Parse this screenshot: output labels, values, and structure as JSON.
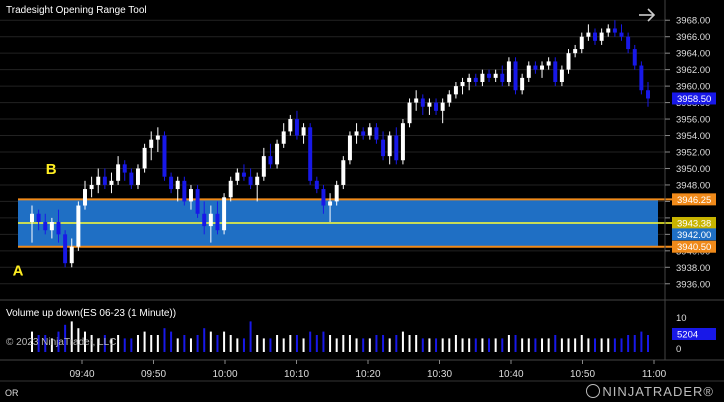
{
  "header": {
    "title": "Tradesight Opening Range Tool",
    "nav_icon": "right-arrow-icon"
  },
  "volume_panel": {
    "title": "Volume up down(ES 06-23 (1 Minute))",
    "copyright": "© 2023 NinjaTrader, LLC",
    "price_label": "5204",
    "tick_labels": [
      "10",
      "0"
    ]
  },
  "footer": {
    "corner_text": "OR",
    "brand_name": "NINJATRADER",
    "brand_trademark": "®"
  },
  "colors": {
    "up": "#ffffff",
    "down": "#1818e8",
    "range_fill": "#1f6fc4",
    "range_border": "#f08a1a",
    "range_mid": "#ffff33",
    "grid": "#222222"
  },
  "chart_data": {
    "type": "candlestick",
    "ylim": [
      3935,
      3969
    ],
    "y_ticks": [
      3936,
      3938,
      3940,
      3942,
      3944,
      3946,
      3948,
      3950,
      3952,
      3954,
      3956,
      3958,
      3960,
      3962,
      3964,
      3966,
      3968
    ],
    "y_tick_labels": [
      "3936.00",
      "3938.00",
      "3940.00",
      "3942.00",
      "",
      "",
      "3948.00",
      "3950.00",
      "3952.00",
      "3954.00",
      "3956.00",
      "3958.00",
      "3960.00",
      "3962.00",
      "3964.00",
      "3966.00",
      "3968.00"
    ],
    "x_ticks": [
      "09:40",
      "09:50",
      "10:00",
      "10:10",
      "10:20",
      "10:30",
      "10:40",
      "10:50",
      "11:00"
    ],
    "opening_range": {
      "high": 3946.25,
      "mid": 3943.38,
      "low": 3940.5
    },
    "price_labels": [
      {
        "label": "3946.25",
        "value": 3946.25,
        "color": "#f08a1a"
      },
      {
        "label": "3943.38",
        "value": 3943.38,
        "color": "#c8b400"
      },
      {
        "label": "3942.00",
        "value": 3942.0,
        "color": "#1f6fc4"
      },
      {
        "label": "3940.50",
        "value": 3940.5,
        "color": "#f08a1a"
      },
      {
        "label": "3958.50",
        "value": 3958.5,
        "color": "#1818e8"
      }
    ],
    "annotations": [
      {
        "text": "A",
        "value": 3937.5,
        "bar": 1
      },
      {
        "text": "B",
        "value": 3949.8,
        "bar": 6
      }
    ],
    "candles": [
      {
        "o": 3943.5,
        "h": 3945.5,
        "l": 3941.0,
        "c": 3944.5,
        "v": 6
      },
      {
        "o": 3944.5,
        "h": 3945.0,
        "l": 3942.5,
        "c": 3943.5,
        "v": 5
      },
      {
        "o": 3943.5,
        "h": 3944.5,
        "l": 3942.0,
        "c": 3942.5,
        "v": 5
      },
      {
        "o": 3942.5,
        "h": 3944.0,
        "l": 3941.5,
        "c": 3943.5,
        "v": 4
      },
      {
        "o": 3943.5,
        "h": 3945.0,
        "l": 3941.0,
        "c": 3942.0,
        "v": 6
      },
      {
        "o": 3942.0,
        "h": 3942.5,
        "l": 3938.0,
        "c": 3938.5,
        "v": 8
      },
      {
        "o": 3938.5,
        "h": 3941.5,
        "l": 3938.0,
        "c": 3940.5,
        "v": 9
      },
      {
        "o": 3940.5,
        "h": 3946.0,
        "l": 3940.0,
        "c": 3945.5,
        "v": 7
      },
      {
        "o": 3945.5,
        "h": 3948.5,
        "l": 3945.0,
        "c": 3947.5,
        "v": 6
      },
      {
        "o": 3947.5,
        "h": 3949.0,
        "l": 3946.5,
        "c": 3948.0,
        "v": 5
      },
      {
        "o": 3948.0,
        "h": 3950.0,
        "l": 3947.0,
        "c": 3949.0,
        "v": 4
      },
      {
        "o": 3949.0,
        "h": 3950.0,
        "l": 3947.5,
        "c": 3948.0,
        "v": 5
      },
      {
        "o": 3948.0,
        "h": 3949.5,
        "l": 3947.0,
        "c": 3948.5,
        "v": 4
      },
      {
        "o": 3948.5,
        "h": 3951.5,
        "l": 3948.0,
        "c": 3950.5,
        "v": 5
      },
      {
        "o": 3950.5,
        "h": 3951.0,
        "l": 3948.5,
        "c": 3949.5,
        "v": 4
      },
      {
        "o": 3949.5,
        "h": 3950.0,
        "l": 3947.5,
        "c": 3948.0,
        "v": 4
      },
      {
        "o": 3948.0,
        "h": 3950.5,
        "l": 3947.5,
        "c": 3950.0,
        "v": 5
      },
      {
        "o": 3950.0,
        "h": 3953.0,
        "l": 3949.5,
        "c": 3952.5,
        "v": 6
      },
      {
        "o": 3952.5,
        "h": 3954.5,
        "l": 3951.0,
        "c": 3953.5,
        "v": 5
      },
      {
        "o": 3953.5,
        "h": 3955.0,
        "l": 3952.0,
        "c": 3954.0,
        "v": 5
      },
      {
        "o": 3954.0,
        "h": 3954.5,
        "l": 3948.5,
        "c": 3949.0,
        "v": 7
      },
      {
        "o": 3949.0,
        "h": 3949.5,
        "l": 3947.0,
        "c": 3947.5,
        "v": 6
      },
      {
        "o": 3947.5,
        "h": 3949.0,
        "l": 3946.0,
        "c": 3948.5,
        "v": 4
      },
      {
        "o": 3948.5,
        "h": 3949.0,
        "l": 3945.5,
        "c": 3946.0,
        "v": 5
      },
      {
        "o": 3946.0,
        "h": 3948.0,
        "l": 3945.0,
        "c": 3947.5,
        "v": 4
      },
      {
        "o": 3947.5,
        "h": 3948.0,
        "l": 3944.0,
        "c": 3944.5,
        "v": 5
      },
      {
        "o": 3944.5,
        "h": 3946.0,
        "l": 3942.0,
        "c": 3943.0,
        "v": 7
      },
      {
        "o": 3943.0,
        "h": 3945.5,
        "l": 3941.0,
        "c": 3944.5,
        "v": 6
      },
      {
        "o": 3944.5,
        "h": 3946.0,
        "l": 3942.0,
        "c": 3942.5,
        "v": 5
      },
      {
        "o": 3942.5,
        "h": 3947.0,
        "l": 3942.0,
        "c": 3946.5,
        "v": 6
      },
      {
        "o": 3946.5,
        "h": 3949.0,
        "l": 3946.0,
        "c": 3948.5,
        "v": 5
      },
      {
        "o": 3948.5,
        "h": 3950.0,
        "l": 3948.0,
        "c": 3949.5,
        "v": 4
      },
      {
        "o": 3949.5,
        "h": 3950.5,
        "l": 3948.5,
        "c": 3949.0,
        "v": 4
      },
      {
        "o": 3949.0,
        "h": 3950.0,
        "l": 3947.5,
        "c": 3948.0,
        "v": 9
      },
      {
        "o": 3948.0,
        "h": 3949.5,
        "l": 3946.0,
        "c": 3949.0,
        "v": 5
      },
      {
        "o": 3949.0,
        "h": 3952.5,
        "l": 3948.5,
        "c": 3951.5,
        "v": 4
      },
      {
        "o": 3951.5,
        "h": 3953.0,
        "l": 3950.0,
        "c": 3950.5,
        "v": 4
      },
      {
        "o": 3950.5,
        "h": 3953.5,
        "l": 3950.0,
        "c": 3953.0,
        "v": 5
      },
      {
        "o": 3953.0,
        "h": 3955.5,
        "l": 3952.5,
        "c": 3954.5,
        "v": 4
      },
      {
        "o": 3954.5,
        "h": 3956.5,
        "l": 3954.0,
        "c": 3956.0,
        "v": 5
      },
      {
        "o": 3956.0,
        "h": 3957.0,
        "l": 3953.5,
        "c": 3954.0,
        "v": 5
      },
      {
        "o": 3954.0,
        "h": 3955.5,
        "l": 3953.0,
        "c": 3955.0,
        "v": 4
      },
      {
        "o": 3955.0,
        "h": 3955.5,
        "l": 3948.0,
        "c": 3948.5,
        "v": 6
      },
      {
        "o": 3948.5,
        "h": 3949.0,
        "l": 3947.0,
        "c": 3947.5,
        "v": 5
      },
      {
        "o": 3947.5,
        "h": 3948.0,
        "l": 3944.5,
        "c": 3945.5,
        "v": 6
      },
      {
        "o": 3945.5,
        "h": 3947.0,
        "l": 3943.5,
        "c": 3946.0,
        "v": 5
      },
      {
        "o": 3946.0,
        "h": 3948.5,
        "l": 3945.5,
        "c": 3948.0,
        "v": 4
      },
      {
        "o": 3948.0,
        "h": 3951.5,
        "l": 3947.5,
        "c": 3951.0,
        "v": 5
      },
      {
        "o": 3951.0,
        "h": 3954.5,
        "l": 3950.5,
        "c": 3954.0,
        "v": 5
      },
      {
        "o": 3954.0,
        "h": 3955.5,
        "l": 3953.0,
        "c": 3954.5,
        "v": 4
      },
      {
        "o": 3954.5,
        "h": 3955.0,
        "l": 3953.5,
        "c": 3954.0,
        "v": 4
      },
      {
        "o": 3954.0,
        "h": 3955.5,
        "l": 3953.5,
        "c": 3955.0,
        "v": 4
      },
      {
        "o": 3955.0,
        "h": 3955.5,
        "l": 3953.0,
        "c": 3953.5,
        "v": 5
      },
      {
        "o": 3953.5,
        "h": 3954.5,
        "l": 3951.0,
        "c": 3951.5,
        "v": 5
      },
      {
        "o": 3951.5,
        "h": 3954.5,
        "l": 3950.5,
        "c": 3954.0,
        "v": 4
      },
      {
        "o": 3954.0,
        "h": 3955.0,
        "l": 3950.5,
        "c": 3951.0,
        "v": 5
      },
      {
        "o": 3951.0,
        "h": 3956.0,
        "l": 3950.5,
        "c": 3955.5,
        "v": 6
      },
      {
        "o": 3955.5,
        "h": 3958.5,
        "l": 3955.0,
        "c": 3958.0,
        "v": 5
      },
      {
        "o": 3958.0,
        "h": 3959.5,
        "l": 3957.0,
        "c": 3958.5,
        "v": 5
      },
      {
        "o": 3958.5,
        "h": 3959.0,
        "l": 3956.5,
        "c": 3957.5,
        "v": 4
      },
      {
        "o": 3957.5,
        "h": 3958.5,
        "l": 3956.5,
        "c": 3958.0,
        "v": 4
      },
      {
        "o": 3958.0,
        "h": 3958.5,
        "l": 3956.5,
        "c": 3957.0,
        "v": 4
      },
      {
        "o": 3957.0,
        "h": 3958.5,
        "l": 3955.5,
        "c": 3958.0,
        "v": 4
      },
      {
        "o": 3958.0,
        "h": 3959.5,
        "l": 3957.5,
        "c": 3959.0,
        "v": 4
      },
      {
        "o": 3959.0,
        "h": 3960.5,
        "l": 3958.5,
        "c": 3960.0,
        "v": 5
      },
      {
        "o": 3960.0,
        "h": 3961.0,
        "l": 3959.0,
        "c": 3960.5,
        "v": 4
      },
      {
        "o": 3960.5,
        "h": 3961.5,
        "l": 3959.5,
        "c": 3961.0,
        "v": 4
      },
      {
        "o": 3961.0,
        "h": 3961.5,
        "l": 3960.0,
        "c": 3960.5,
        "v": 4
      },
      {
        "o": 3960.5,
        "h": 3962.0,
        "l": 3960.0,
        "c": 3961.5,
        "v": 4
      },
      {
        "o": 3961.5,
        "h": 3962.0,
        "l": 3960.5,
        "c": 3961.0,
        "v": 4
      },
      {
        "o": 3961.0,
        "h": 3962.0,
        "l": 3960.5,
        "c": 3961.5,
        "v": 4
      },
      {
        "o": 3961.5,
        "h": 3962.5,
        "l": 3960.0,
        "c": 3960.5,
        "v": 4
      },
      {
        "o": 3960.5,
        "h": 3963.5,
        "l": 3960.0,
        "c": 3963.0,
        "v": 5
      },
      {
        "o": 3963.0,
        "h": 3963.5,
        "l": 3959.0,
        "c": 3959.5,
        "v": 5
      },
      {
        "o": 3959.5,
        "h": 3961.5,
        "l": 3959.0,
        "c": 3961.0,
        "v": 4
      },
      {
        "o": 3961.0,
        "h": 3963.0,
        "l": 3960.5,
        "c": 3962.5,
        "v": 4
      },
      {
        "o": 3962.5,
        "h": 3963.0,
        "l": 3961.5,
        "c": 3962.0,
        "v": 4
      },
      {
        "o": 3962.0,
        "h": 3963.0,
        "l": 3961.0,
        "c": 3962.5,
        "v": 4
      },
      {
        "o": 3962.5,
        "h": 3963.5,
        "l": 3962.0,
        "c": 3963.0,
        "v": 4
      },
      {
        "o": 3963.0,
        "h": 3963.5,
        "l": 3960.0,
        "c": 3960.5,
        "v": 5
      },
      {
        "o": 3960.5,
        "h": 3962.5,
        "l": 3960.0,
        "c": 3962.0,
        "v": 4
      },
      {
        "o": 3962.0,
        "h": 3964.5,
        "l": 3961.5,
        "c": 3964.0,
        "v": 4
      },
      {
        "o": 3964.0,
        "h": 3965.0,
        "l": 3963.5,
        "c": 3964.5,
        "v": 4
      },
      {
        "o": 3964.5,
        "h": 3966.5,
        "l": 3964.0,
        "c": 3966.0,
        "v": 5
      },
      {
        "o": 3966.0,
        "h": 3967.5,
        "l": 3965.5,
        "c": 3966.5,
        "v": 4
      },
      {
        "o": 3966.5,
        "h": 3967.0,
        "l": 3965.0,
        "c": 3965.5,
        "v": 4
      },
      {
        "o": 3965.5,
        "h": 3967.0,
        "l": 3965.0,
        "c": 3966.5,
        "v": 4
      },
      {
        "o": 3966.5,
        "h": 3967.5,
        "l": 3966.0,
        "c": 3967.0,
        "v": 4
      },
      {
        "o": 3967.0,
        "h": 3968.0,
        "l": 3966.0,
        "c": 3966.5,
        "v": 4
      },
      {
        "o": 3966.5,
        "h": 3967.5,
        "l": 3965.5,
        "c": 3966.0,
        "v": 4
      },
      {
        "o": 3966.0,
        "h": 3966.5,
        "l": 3964.0,
        "c": 3964.5,
        "v": 5
      },
      {
        "o": 3964.5,
        "h": 3965.0,
        "l": 3962.0,
        "c": 3962.5,
        "v": 5
      },
      {
        "o": 3962.5,
        "h": 3963.0,
        "l": 3959.0,
        "c": 3959.5,
        "v": 6
      },
      {
        "o": 3959.5,
        "h": 3960.5,
        "l": 3957.5,
        "c": 3958.5,
        "v": 5
      }
    ]
  }
}
